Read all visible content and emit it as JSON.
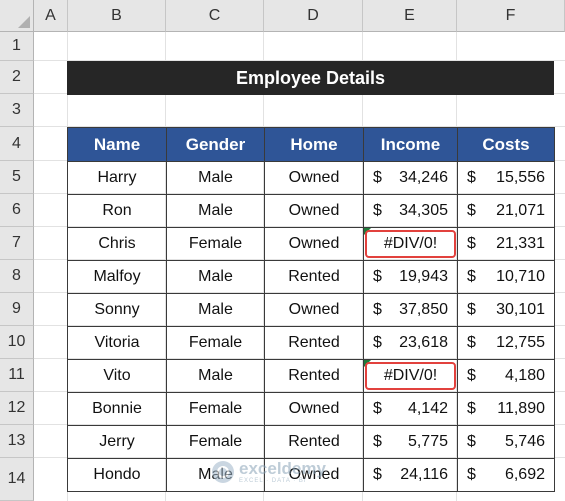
{
  "columns": [
    "A",
    "B",
    "C",
    "D",
    "E",
    "F"
  ],
  "rows": [
    "1",
    "2",
    "3",
    "4",
    "5",
    "6",
    "7",
    "8",
    "9",
    "10",
    "11",
    "12",
    "13",
    "14"
  ],
  "title": "Employee Details",
  "headers": {
    "name": "Name",
    "gender": "Gender",
    "home": "Home",
    "income": "Income",
    "costs": "Costs"
  },
  "currency_symbol": "$",
  "records": [
    {
      "name": "Harry",
      "gender": "Male",
      "home": "Owned",
      "income": "34,246",
      "costs": "15,556"
    },
    {
      "name": "Ron",
      "gender": "Male",
      "home": "Owned",
      "income": "34,305",
      "costs": "21,071"
    },
    {
      "name": "Chris",
      "gender": "Female",
      "home": "Owned",
      "income": "#DIV/0!",
      "costs": "21,331"
    },
    {
      "name": "Malfoy",
      "gender": "Male",
      "home": "Rented",
      "income": "19,943",
      "costs": "10,710"
    },
    {
      "name": "Sonny",
      "gender": "Male",
      "home": "Owned",
      "income": "37,850",
      "costs": "30,101"
    },
    {
      "name": "Vitoria",
      "gender": "Female",
      "home": "Rented",
      "income": "23,618",
      "costs": "12,755"
    },
    {
      "name": "Vito",
      "gender": "Male",
      "home": "Rented",
      "income": "#DIV/0!",
      "costs": "4,180"
    },
    {
      "name": "Bonnie",
      "gender": "Female",
      "home": "Owned",
      "income": "4,142",
      "costs": "11,890"
    },
    {
      "name": "Jerry",
      "gender": "Female",
      "home": "Rented",
      "income": "5,775",
      "costs": "5,746"
    },
    {
      "name": "Hondo",
      "gender": "Male",
      "home": "Owned",
      "income": "24,116",
      "costs": "6,692"
    }
  ],
  "watermark": {
    "name": "exceldemy",
    "tagline": "EXCEL · DATA · BI"
  },
  "colors": {
    "header_fill": "#2f5597",
    "title_fill": "#262626",
    "error_outline": "#e2413d"
  }
}
